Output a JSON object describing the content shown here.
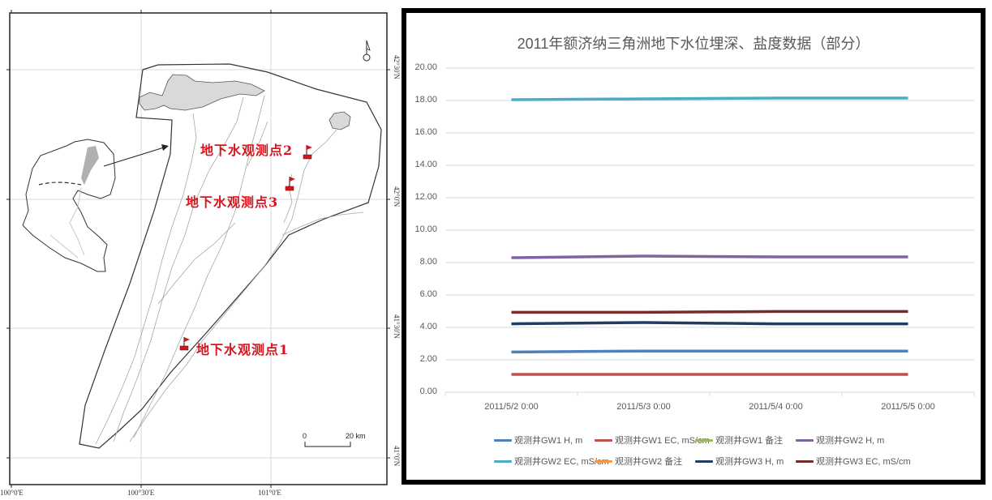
{
  "map": {
    "lon_labels": [
      "100°0'E",
      "100°30'E",
      "101°0'E"
    ],
    "lat_labels": [
      "42°30'N",
      "42°0'N",
      "41°30'N",
      "41°0'N"
    ],
    "stations": [
      {
        "label": "地下水观测点1"
      },
      {
        "label": "地下水观测点2"
      },
      {
        "label": "地下水观测点3"
      }
    ],
    "scale_bar": {
      "start": "0",
      "end": "20 km"
    },
    "north_arrow": "north-arrow-icon",
    "station_color": "#d8141c"
  },
  "chart_data": {
    "type": "line",
    "title": "2011年额济纳三角洲地下水位埋深、盐度数据（部分）",
    "xlabel": "",
    "ylabel": "",
    "x": [
      "2011/5/2 0:00",
      "2011/5/3 0:00",
      "2011/5/4 0:00",
      "2011/5/5 0:00"
    ],
    "ylim": [
      0,
      20
    ],
    "yticks": [
      "0.00",
      "2.00",
      "4.00",
      "6.00",
      "8.00",
      "10.00",
      "12.00",
      "14.00",
      "16.00",
      "18.00",
      "20.00"
    ],
    "grid": true,
    "legend_position": "bottom",
    "series": [
      {
        "name": "观测井GW1 H, m",
        "color": "#4f81bd",
        "values": [
          2.48,
          2.54,
          2.54,
          2.54
        ]
      },
      {
        "name": "观测井GW1 EC, mS/cm",
        "color": "#c0504d",
        "values": [
          1.1,
          1.1,
          1.1,
          1.1
        ]
      },
      {
        "name": "观测井GW1 备注",
        "color": "#9bbb59",
        "values": []
      },
      {
        "name": "观测井GW2 H, m",
        "color": "#8064a2",
        "values": [
          8.3,
          8.4,
          8.35,
          8.35
        ]
      },
      {
        "name": "观测井GW2 EC, mS/cm",
        "color": "#4bacc6",
        "values": [
          18.05,
          18.1,
          18.15,
          18.15
        ]
      },
      {
        "name": "观测井GW2 备注",
        "color": "#f79646",
        "values": []
      },
      {
        "name": "观测井GW3 H, m",
        "color": "#1f3c63",
        "values": [
          4.22,
          4.3,
          4.22,
          4.22
        ]
      },
      {
        "name": "观测井GW3 EC, mS/cm",
        "color": "#772c2a",
        "values": [
          4.93,
          4.93,
          4.98,
          4.98
        ]
      }
    ]
  }
}
